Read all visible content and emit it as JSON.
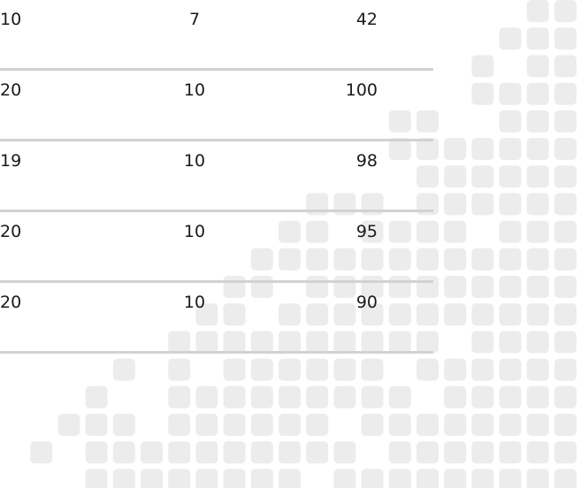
{
  "table": {
    "rows": [
      [
        "10",
        "7",
        "42"
      ],
      [
        "20",
        "10",
        "100"
      ],
      [
        "19",
        "10",
        "98"
      ],
      [
        "20",
        "10",
        "95"
      ],
      [
        "20",
        "10",
        "90"
      ]
    ]
  }
}
